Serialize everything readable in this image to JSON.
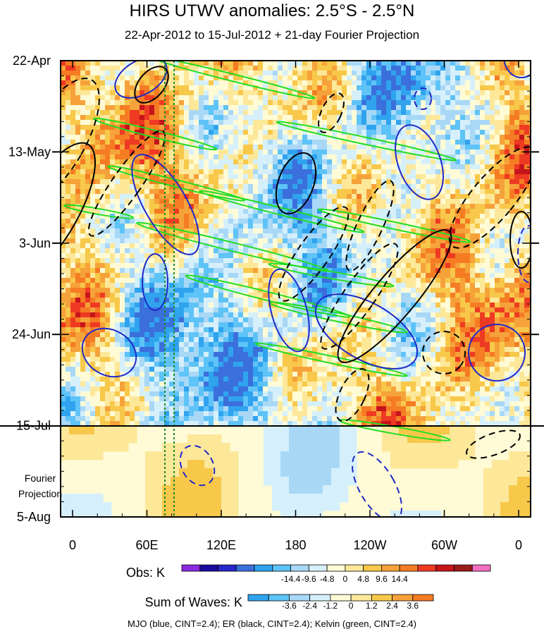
{
  "chart_data": {
    "type": "heatmap",
    "title": "HIRS UTWV anomalies: 2.5°S - 2.5°N",
    "subtitle": "22-Apr-2012 to 15-Jul-2012 + 21-day Fourier Projection",
    "x_tick_labels": [
      "0",
      "60E",
      "120E",
      "180",
      "120W",
      "60W",
      "0"
    ],
    "y_tick_labels": [
      "22-Apr",
      "13-May",
      "3-Jun",
      "24-Jun",
      "15-Jul",
      "5-Aug"
    ],
    "projection_boundary_label": "15-Jul",
    "projection_label_lines": [
      "Fourier",
      "Projection"
    ],
    "colorbars": [
      {
        "title": "Obs: K",
        "tick_labels": [
          "-14.4",
          "-9.6",
          "-4.8",
          "0",
          "4.8",
          "9.6",
          "14.4"
        ],
        "colors": [
          "#8a2be2",
          "#1a0aa0",
          "#2727c9",
          "#3b6fdc",
          "#2fa3ee",
          "#5ec3f7",
          "#a9d8f7",
          "#d6f0fb",
          "#fffbd6",
          "#fde89a",
          "#f8c84a",
          "#f6a23a",
          "#f57c23",
          "#ee3a22",
          "#c6141c",
          "#9b1a1a",
          "#f26fc0"
        ]
      },
      {
        "title": "Sum of Waves: K",
        "tick_labels": [
          "-3.6",
          "-2.4",
          "-1.2",
          "0",
          "1.2",
          "2.4",
          "3.6"
        ],
        "colors": [
          "#2fa3ee",
          "#5ec3f7",
          "#a9d8f7",
          "#d6f0fb",
          "#fffbd6",
          "#fde89a",
          "#f8c84a",
          "#f6a23a",
          "#f57c23"
        ]
      }
    ],
    "contour_legend": "MJO (blue, CINT=2.4); ER (black, CINT=2.4); Kelvin (green, CINT=2.4)",
    "series_colors": {
      "MJO": "#1f28c8",
      "ER": "#000000",
      "Kelvin": "#22dd22"
    },
    "reference_lines": {
      "color": "#1c8a2a",
      "style": "dotted"
    }
  }
}
